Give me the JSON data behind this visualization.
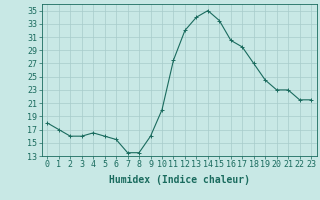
{
  "x": [
    0,
    1,
    2,
    3,
    4,
    5,
    6,
    7,
    8,
    9,
    10,
    11,
    12,
    13,
    14,
    15,
    16,
    17,
    18,
    19,
    20,
    21,
    22,
    23
  ],
  "y": [
    18,
    17,
    16,
    16,
    16.5,
    16,
    15.5,
    13.5,
    13.5,
    16,
    20,
    27.5,
    32,
    34,
    35,
    33.5,
    30.5,
    29.5,
    27,
    24.5,
    23,
    23,
    21.5,
    21.5
  ],
  "line_color": "#1a6b5e",
  "marker": "+",
  "bg_color": "#c8e8e5",
  "grid_color": "#a8cccb",
  "xlabel": "Humidex (Indice chaleur)",
  "xlim": [
    -0.5,
    23.5
  ],
  "ylim": [
    13,
    36
  ],
  "yticks": [
    13,
    15,
    17,
    19,
    21,
    23,
    25,
    27,
    29,
    31,
    33,
    35
  ],
  "xticks": [
    0,
    1,
    2,
    3,
    4,
    5,
    6,
    7,
    8,
    9,
    10,
    11,
    12,
    13,
    14,
    15,
    16,
    17,
    18,
    19,
    20,
    21,
    22,
    23
  ],
  "tick_color": "#1a6b5e",
  "label_color": "#1a6b5e",
  "font_size": 6,
  "xlabel_fontsize": 7
}
